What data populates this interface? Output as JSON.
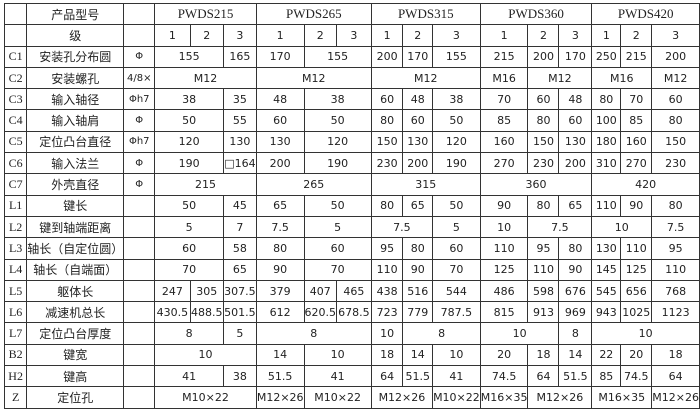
{
  "header": {
    "title_label": "产品型号",
    "models": [
      "PWDS215",
      "PWDS265",
      "PWDS315",
      "PWDS360",
      "PWDS420"
    ]
  },
  "stage_row": {
    "label": "级",
    "stages": [
      "1",
      "2",
      "3"
    ]
  },
  "rows": [
    {
      "code": "C1",
      "name": "安装孔分布圆",
      "unit": "Φ",
      "cells": [
        [
          "155",
          2
        ],
        [
          "165",
          1
        ],
        [
          "170",
          1
        ],
        [
          "155",
          2
        ],
        [
          "200",
          1
        ],
        [
          "170",
          1
        ],
        [
          "155",
          1
        ],
        [
          "215",
          1
        ],
        [
          "200",
          1
        ],
        [
          "170",
          1
        ],
        [
          "250",
          1
        ],
        [
          "215",
          1
        ],
        [
          "200",
          1
        ]
      ]
    },
    {
      "code": "C2",
      "name": "安装螺孔",
      "unit": "4/8×",
      "cells": [
        [
          "M12",
          3
        ],
        [
          "M12",
          3
        ],
        [
          "M12",
          3
        ],
        [
          "M16",
          1
        ],
        [
          "M12",
          2
        ],
        [
          "M16",
          2
        ],
        [
          "M12",
          1
        ]
      ]
    },
    {
      "code": "C3",
      "name": "输入轴径",
      "unit": "Φh7",
      "cells": [
        [
          "38",
          2
        ],
        [
          "35",
          1
        ],
        [
          "48",
          1
        ],
        [
          "38",
          2
        ],
        [
          "60",
          1
        ],
        [
          "48",
          1
        ],
        [
          "38",
          1
        ],
        [
          "70",
          1
        ],
        [
          "60",
          1
        ],
        [
          "48",
          1
        ],
        [
          "80",
          1
        ],
        [
          "70",
          1
        ],
        [
          "60",
          1
        ]
      ]
    },
    {
      "code": "C4",
      "name": "输入轴肩",
      "unit": "Φ",
      "cells": [
        [
          "50",
          2
        ],
        [
          "55",
          1
        ],
        [
          "60",
          1
        ],
        [
          "50",
          2
        ],
        [
          "80",
          1
        ],
        [
          "60",
          1
        ],
        [
          "50",
          1
        ],
        [
          "85",
          1
        ],
        [
          "80",
          1
        ],
        [
          "60",
          1
        ],
        [
          "100",
          1
        ],
        [
          "85",
          1
        ],
        [
          "80",
          1
        ]
      ]
    },
    {
      "code": "C5",
      "name": "定位凸台直径",
      "unit": "Φh7",
      "cells": [
        [
          "120",
          2
        ],
        [
          "130",
          1
        ],
        [
          "130",
          1
        ],
        [
          "120",
          2
        ],
        [
          "150",
          1
        ],
        [
          "130",
          1
        ],
        [
          "120",
          1
        ],
        [
          "160",
          1
        ],
        [
          "150",
          1
        ],
        [
          "130",
          1
        ],
        [
          "180",
          1
        ],
        [
          "160",
          1
        ],
        [
          "150",
          1
        ]
      ]
    },
    {
      "code": "C6",
      "name": "输入法兰",
      "unit": "Φ",
      "cells": [
        [
          "190",
          2
        ],
        [
          "□164",
          1
        ],
        [
          "200",
          1
        ],
        [
          "190",
          2
        ],
        [
          "230",
          1
        ],
        [
          "200",
          1
        ],
        [
          "190",
          1
        ],
        [
          "270",
          1
        ],
        [
          "230",
          1
        ],
        [
          "200",
          1
        ],
        [
          "310",
          1
        ],
        [
          "270",
          1
        ],
        [
          "230",
          1
        ]
      ]
    },
    {
      "code": "C7",
      "name": "外壳直径",
      "unit": "Φ",
      "cells": [
        [
          "215",
          3
        ],
        [
          "265",
          3
        ],
        [
          "315",
          3
        ],
        [
          "360",
          3
        ],
        [
          "420",
          3
        ]
      ]
    },
    {
      "code": "L1",
      "name": "键长",
      "unit": "",
      "cells": [
        [
          "50",
          2
        ],
        [
          "45",
          1
        ],
        [
          "65",
          1
        ],
        [
          "50",
          2
        ],
        [
          "80",
          1
        ],
        [
          "65",
          1
        ],
        [
          "50",
          1
        ],
        [
          "90",
          1
        ],
        [
          "80",
          1
        ],
        [
          "65",
          1
        ],
        [
          "110",
          1
        ],
        [
          "90",
          1
        ],
        [
          "80",
          1
        ]
      ]
    },
    {
      "code": "L2",
      "name": "键到轴端距离",
      "unit": "",
      "cells": [
        [
          "5",
          2
        ],
        [
          "7",
          1
        ],
        [
          "7.5",
          1
        ],
        [
          "5",
          2
        ],
        [
          "7.5",
          2
        ],
        [
          "5",
          1
        ],
        [
          "10",
          1
        ],
        [
          "7.5",
          2
        ],
        [
          "10",
          2
        ],
        [
          "7.5",
          1
        ]
      ]
    },
    {
      "code": "L3",
      "name": "轴长（自定位圆）",
      "unit": "",
      "cells": [
        [
          "60",
          2
        ],
        [
          "58",
          1
        ],
        [
          "80",
          1
        ],
        [
          "60",
          2
        ],
        [
          "95",
          1
        ],
        [
          "80",
          1
        ],
        [
          "60",
          1
        ],
        [
          "110",
          1
        ],
        [
          "95",
          1
        ],
        [
          "80",
          1
        ],
        [
          "130",
          1
        ],
        [
          "110",
          1
        ],
        [
          "95",
          1
        ]
      ]
    },
    {
      "code": "L4",
      "name": "轴长（自端面）",
      "unit": "",
      "cells": [
        [
          "70",
          2
        ],
        [
          "65",
          1
        ],
        [
          "90",
          1
        ],
        [
          "70",
          2
        ],
        [
          "110",
          1
        ],
        [
          "90",
          1
        ],
        [
          "70",
          1
        ],
        [
          "125",
          1
        ],
        [
          "110",
          1
        ],
        [
          "90",
          1
        ],
        [
          "145",
          1
        ],
        [
          "125",
          1
        ],
        [
          "110",
          1
        ]
      ]
    },
    {
      "code": "L5",
      "name": "躯体长",
      "unit": "",
      "cells": [
        [
          "247",
          1
        ],
        [
          "305",
          1
        ],
        [
          "307.5",
          1
        ],
        [
          "379",
          1
        ],
        [
          "407",
          1
        ],
        [
          "465",
          1
        ],
        [
          "438",
          1
        ],
        [
          "516",
          1
        ],
        [
          "544",
          1
        ],
        [
          "486",
          1
        ],
        [
          "598",
          1
        ],
        [
          "676",
          1
        ],
        [
          "545",
          1
        ],
        [
          "656",
          1
        ],
        [
          "768",
          1
        ]
      ]
    },
    {
      "code": "L6",
      "name": "减速机总长",
      "unit": "",
      "cells": [
        [
          "430.5",
          1
        ],
        [
          "488.5",
          1
        ],
        [
          "501.5",
          1
        ],
        [
          "612",
          1
        ],
        [
          "620.5",
          1
        ],
        [
          "678.5",
          1
        ],
        [
          "723",
          1
        ],
        [
          "779",
          1
        ],
        [
          "787.5",
          1
        ],
        [
          "815",
          1
        ],
        [
          "913",
          1
        ],
        [
          "969",
          1
        ],
        [
          "943",
          1
        ],
        [
          "1025",
          1
        ],
        [
          "1123",
          1
        ]
      ]
    },
    {
      "code": "L7",
      "name": "定位凸台厚度",
      "unit": "",
      "cells": [
        [
          "8",
          2
        ],
        [
          "5",
          1
        ],
        [
          "8",
          3
        ],
        [
          "10",
          1
        ],
        [
          "8",
          2
        ],
        [
          "10",
          2
        ],
        [
          "8",
          1
        ],
        [
          "10",
          3
        ]
      ]
    },
    {
      "code": "B2",
      "name": "键宽",
      "unit": "",
      "cells": [
        [
          "10",
          3
        ],
        [
          "14",
          1
        ],
        [
          "10",
          2
        ],
        [
          "18",
          1
        ],
        [
          "14",
          1
        ],
        [
          "10",
          1
        ],
        [
          "20",
          1
        ],
        [
          "18",
          1
        ],
        [
          "14",
          1
        ],
        [
          "22",
          1
        ],
        [
          "20",
          1
        ],
        [
          "18",
          1
        ]
      ]
    },
    {
      "code": "H2",
      "name": "键高",
      "unit": "",
      "cells": [
        [
          "41",
          2
        ],
        [
          "38",
          1
        ],
        [
          "51.5",
          1
        ],
        [
          "41",
          2
        ],
        [
          "64",
          1
        ],
        [
          "51.5",
          1
        ],
        [
          "41",
          1
        ],
        [
          "74.5",
          1
        ],
        [
          "64",
          1
        ],
        [
          "51.5",
          1
        ],
        [
          "85",
          1
        ],
        [
          "74.5",
          1
        ],
        [
          "64",
          1
        ]
      ]
    },
    {
      "code": "Z",
      "name": "定位孔",
      "unit": "",
      "cells": [
        [
          "M10×22",
          3
        ],
        [
          "M12×26",
          1
        ],
        [
          "M10×22",
          2
        ],
        [
          "M12×26",
          2
        ],
        [
          "M10×22",
          1
        ],
        [
          "M16×35",
          1
        ],
        [
          "M12×26",
          2
        ],
        [
          "M16×35",
          2
        ],
        [
          "M12×26",
          1
        ]
      ]
    }
  ]
}
